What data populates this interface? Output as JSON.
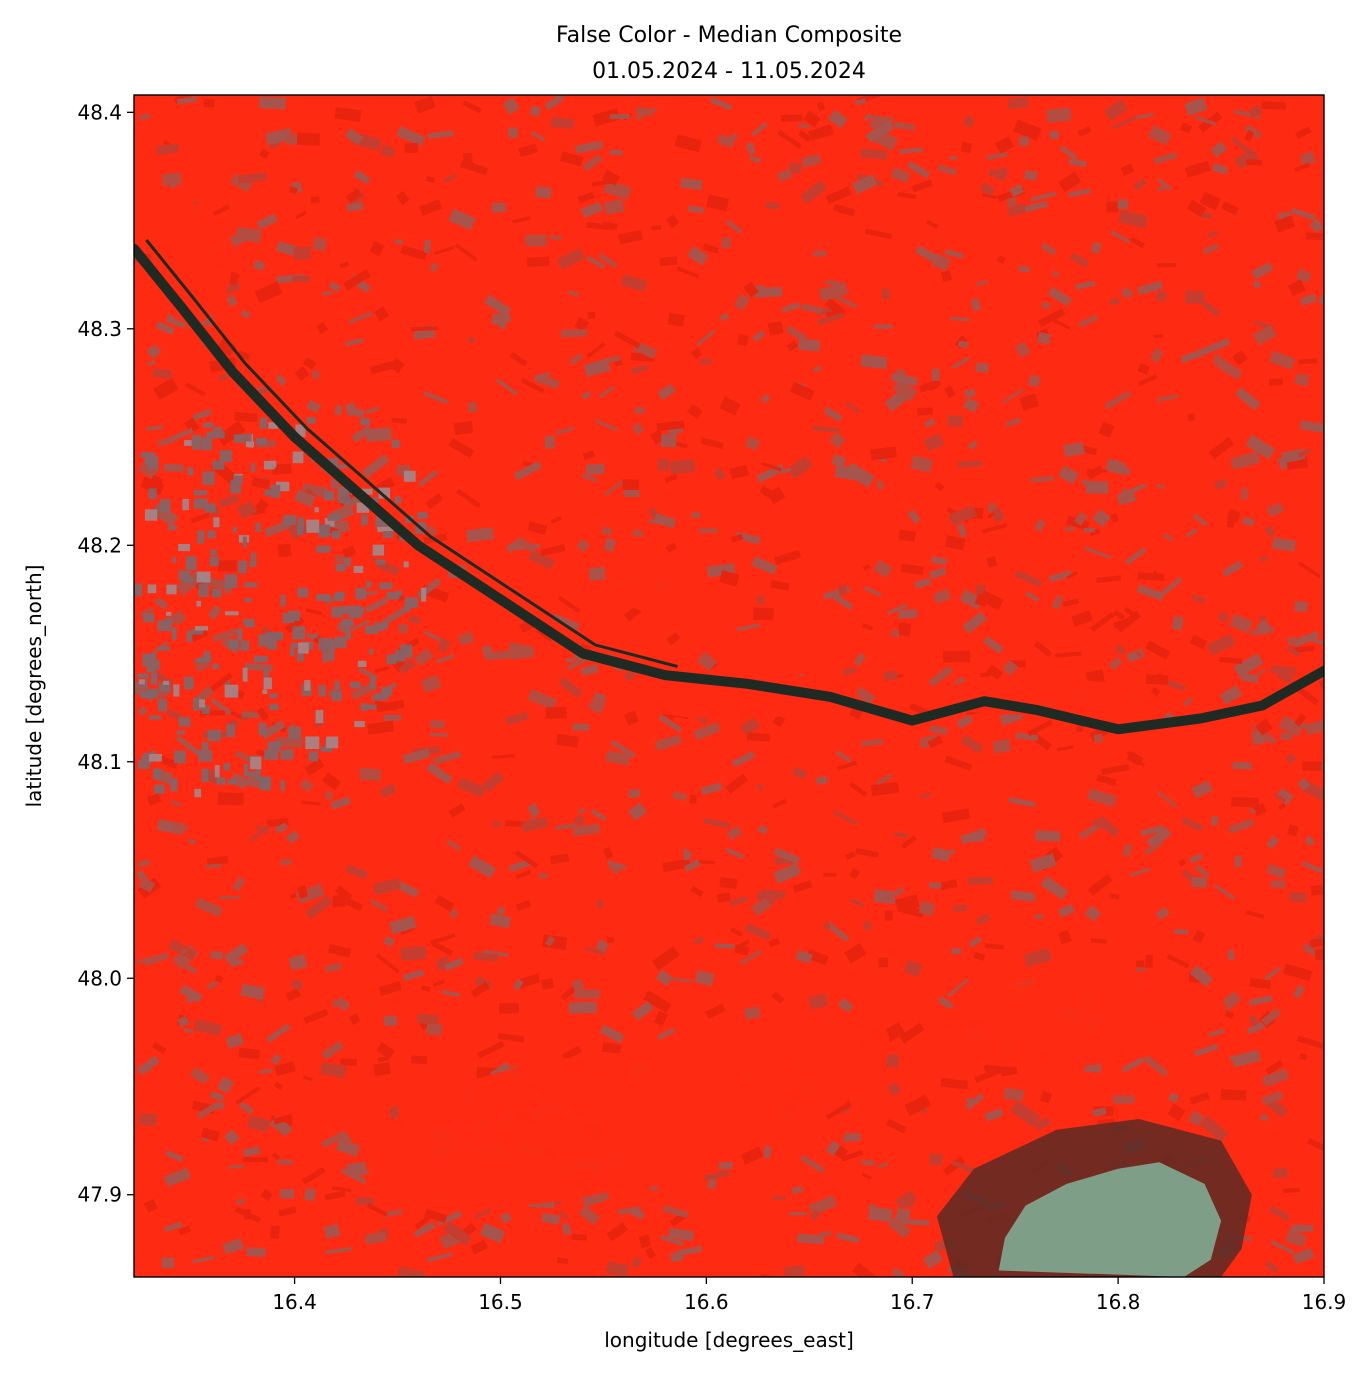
{
  "chart_data": {
    "type": "heatmap",
    "title": "False Color - Median Composite",
    "subtitle": "01.05.2024 - 11.05.2024",
    "xlabel": "longitude [degrees_east]",
    "ylabel": "latitude [degrees_north]",
    "xlim": [
      16.322,
      16.9
    ],
    "ylim": [
      47.862,
      48.408
    ],
    "x_ticks": [
      {
        "value": 16.4,
        "label": "16.4"
      },
      {
        "value": 16.5,
        "label": "16.5"
      },
      {
        "value": 16.6,
        "label": "16.6"
      },
      {
        "value": 16.7,
        "label": "16.7"
      },
      {
        "value": 16.8,
        "label": "16.8"
      },
      {
        "value": 16.9,
        "label": "16.9"
      }
    ],
    "y_ticks": [
      {
        "value": 47.9,
        "label": "47.9"
      },
      {
        "value": 48.0,
        "label": "48.0"
      },
      {
        "value": 48.1,
        "label": "48.1"
      },
      {
        "value": 48.2,
        "label": "48.2"
      },
      {
        "value": 48.3,
        "label": "48.3"
      },
      {
        "value": 48.4,
        "label": "48.4"
      }
    ],
    "grid": false,
    "colors": {
      "vegetation": "#ff2a12",
      "vegetation_dark": "#e0230f",
      "fields_bare": "#8a6460",
      "urban": "#7a6a70",
      "river": "#1f2a22",
      "lake": "#7e9e88",
      "wetland": "#5a2a24"
    },
    "features": {
      "river": [
        [
          16.322,
          48.337
        ],
        [
          16.345,
          48.31
        ],
        [
          16.37,
          48.28
        ],
        [
          16.4,
          48.25
        ],
        [
          16.43,
          48.225
        ],
        [
          16.46,
          48.2
        ],
        [
          16.5,
          48.175
        ],
        [
          16.54,
          48.15
        ],
        [
          16.58,
          48.14
        ],
        [
          16.62,
          48.136
        ],
        [
          16.66,
          48.13
        ],
        [
          16.7,
          48.119
        ],
        [
          16.735,
          48.128
        ],
        [
          16.76,
          48.124
        ],
        [
          16.8,
          48.115
        ],
        [
          16.84,
          48.12
        ],
        [
          16.87,
          48.126
        ],
        [
          16.9,
          48.142
        ]
      ],
      "lake": [
        [
          16.742,
          47.865
        ],
        [
          16.745,
          47.88
        ],
        [
          16.755,
          47.895
        ],
        [
          16.775,
          47.905
        ],
        [
          16.8,
          47.912
        ],
        [
          16.82,
          47.915
        ],
        [
          16.842,
          47.905
        ],
        [
          16.85,
          47.888
        ],
        [
          16.845,
          47.87
        ],
        [
          16.832,
          47.862
        ]
      ],
      "wetland": [
        [
          16.72,
          47.862
        ],
        [
          16.712,
          47.89
        ],
        [
          16.73,
          47.912
        ],
        [
          16.77,
          47.93
        ],
        [
          16.81,
          47.935
        ],
        [
          16.85,
          47.925
        ],
        [
          16.865,
          47.9
        ],
        [
          16.86,
          47.875
        ],
        [
          16.85,
          47.862
        ]
      ]
    }
  }
}
